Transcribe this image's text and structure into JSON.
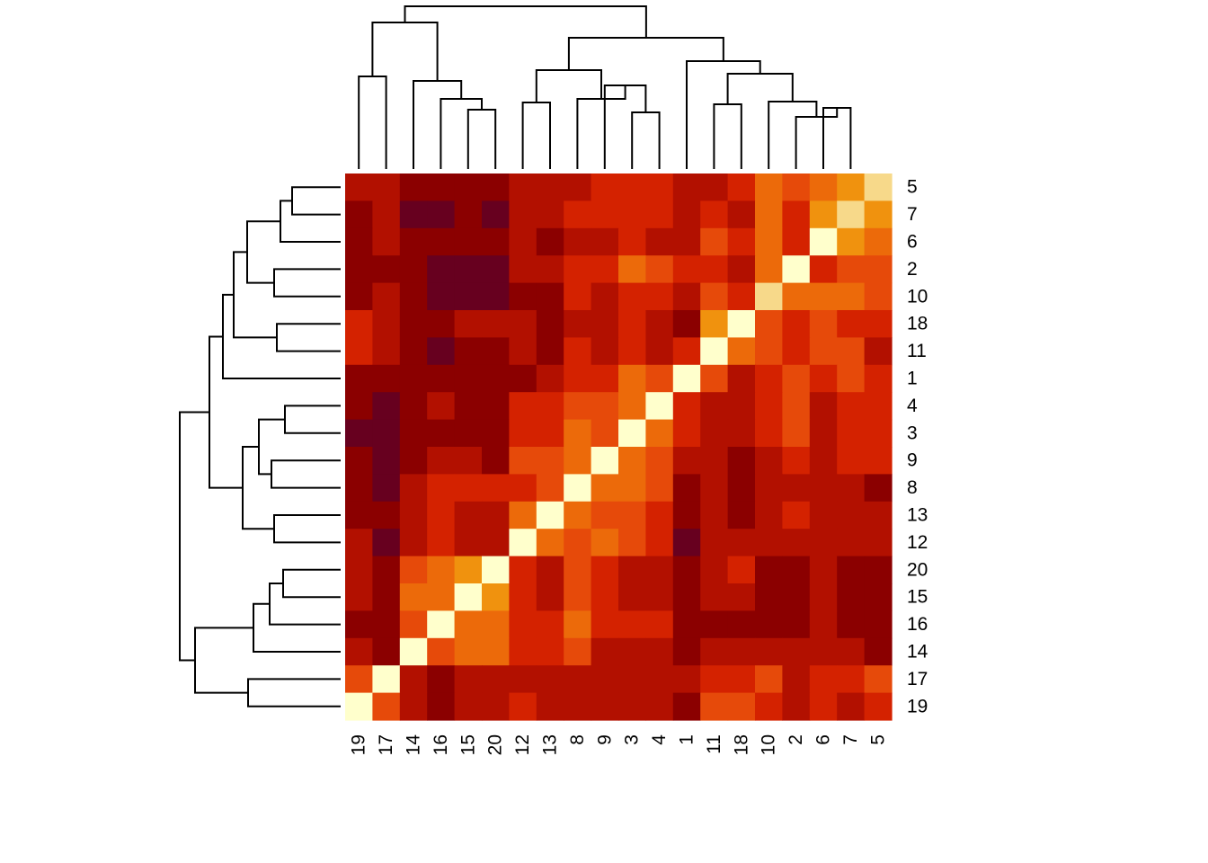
{
  "chart_data": {
    "type": "heatmap",
    "title": "",
    "xlabel": "",
    "ylabel": "",
    "column_labels": [
      "19",
      "17",
      "14",
      "16",
      "15",
      "20",
      "12",
      "13",
      "8",
      "9",
      "3",
      "4",
      "1",
      "11",
      "18",
      "10",
      "2",
      "6",
      "7",
      "5"
    ],
    "row_labels": [
      "5",
      "7",
      "6",
      "2",
      "10",
      "18",
      "11",
      "1",
      "4",
      "3",
      "9",
      "8",
      "13",
      "12",
      "20",
      "15",
      "16",
      "14",
      "17",
      "19"
    ],
    "value_range": [
      0,
      9
    ],
    "color_scale": [
      "#67001F",
      "#8B0000",
      "#B21000",
      "#D42200",
      "#E64A0A",
      "#EC6A0A",
      "#F0920E",
      "#F7D98A",
      "#FFFBC6",
      "#FFFFCC"
    ],
    "values": [
      [
        2,
        2,
        1,
        1,
        1,
        1,
        2,
        2,
        2,
        3,
        3,
        3,
        2,
        2,
        3,
        5,
        4,
        5,
        6,
        7
      ],
      [
        1,
        2,
        0,
        0,
        1,
        0,
        2,
        2,
        3,
        3,
        3,
        3,
        2,
        3,
        2,
        5,
        3,
        6,
        7,
        6
      ],
      [
        1,
        2,
        1,
        1,
        1,
        1,
        2,
        1,
        2,
        2,
        3,
        2,
        2,
        4,
        3,
        5,
        3,
        9,
        6,
        5
      ],
      [
        1,
        1,
        1,
        0,
        0,
        0,
        2,
        2,
        3,
        3,
        5,
        4,
        3,
        3,
        2,
        5,
        9,
        3,
        4,
        4
      ],
      [
        1,
        2,
        1,
        0,
        0,
        0,
        1,
        1,
        3,
        2,
        3,
        3,
        2,
        4,
        3,
        7,
        5,
        5,
        5,
        4
      ],
      [
        3,
        2,
        1,
        1,
        2,
        2,
        2,
        1,
        2,
        2,
        3,
        2,
        1,
        6,
        9,
        4,
        3,
        4,
        3,
        3
      ],
      [
        3,
        2,
        1,
        0,
        1,
        1,
        2,
        1,
        3,
        2,
        3,
        2,
        3,
        9,
        5,
        4,
        3,
        4,
        4,
        2
      ],
      [
        1,
        1,
        1,
        1,
        1,
        1,
        1,
        2,
        3,
        3,
        5,
        4,
        9,
        4,
        2,
        3,
        4,
        3,
        4,
        3
      ],
      [
        1,
        0,
        1,
        2,
        1,
        1,
        3,
        3,
        4,
        4,
        5,
        9,
        3,
        2,
        2,
        3,
        4,
        2,
        3,
        3
      ],
      [
        0,
        0,
        1,
        1,
        1,
        1,
        3,
        3,
        5,
        4,
        9,
        5,
        3,
        2,
        2,
        3,
        4,
        2,
        3,
        3
      ],
      [
        1,
        0,
        1,
        2,
        2,
        1,
        4,
        4,
        5,
        9,
        5,
        4,
        2,
        2,
        1,
        2,
        3,
        2,
        3,
        3
      ],
      [
        1,
        0,
        2,
        3,
        3,
        3,
        3,
        4,
        9,
        5,
        5,
        4,
        1,
        2,
        1,
        2,
        2,
        2,
        2,
        1
      ],
      [
        1,
        1,
        2,
        3,
        2,
        2,
        5,
        9,
        5,
        4,
        4,
        3,
        1,
        2,
        1,
        2,
        3,
        2,
        2,
        2
      ],
      [
        2,
        0,
        2,
        3,
        2,
        2,
        9,
        5,
        4,
        5,
        4,
        3,
        0,
        2,
        2,
        2,
        2,
        2,
        2,
        2
      ],
      [
        2,
        1,
        4,
        5,
        6,
        9,
        3,
        2,
        4,
        3,
        2,
        2,
        1,
        2,
        3,
        1,
        1,
        2,
        1,
        1
      ],
      [
        2,
        1,
        5,
        5,
        9,
        6,
        3,
        2,
        4,
        3,
        2,
        2,
        1,
        2,
        2,
        1,
        1,
        2,
        1,
        1
      ],
      [
        1,
        1,
        4,
        9,
        5,
        5,
        3,
        3,
        5,
        3,
        3,
        3,
        1,
        1,
        1,
        1,
        1,
        2,
        1,
        1
      ],
      [
        2,
        1,
        9,
        4,
        5,
        5,
        3,
        3,
        4,
        2,
        2,
        2,
        1,
        2,
        2,
        2,
        2,
        2,
        2,
        1
      ],
      [
        4,
        9,
        2,
        1,
        2,
        2,
        2,
        2,
        2,
        2,
        2,
        2,
        2,
        3,
        3,
        4,
        2,
        3,
        3,
        4
      ],
      [
        9,
        4,
        2,
        1,
        2,
        2,
        3,
        2,
        2,
        2,
        2,
        2,
        1,
        4,
        4,
        3,
        2,
        3,
        2,
        3
      ]
    ],
    "grid": false,
    "legend": "none"
  }
}
